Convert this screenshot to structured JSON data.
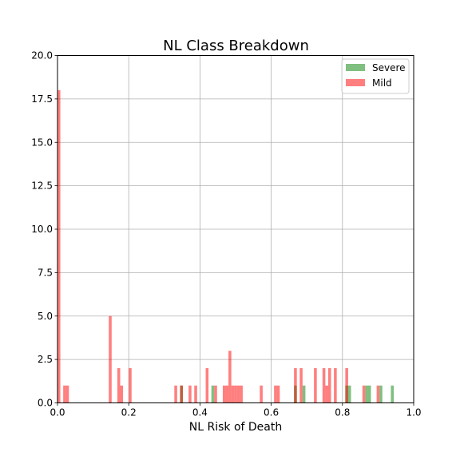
{
  "chart_data": {
    "type": "bar",
    "title": "NL Class Breakdown",
    "xlabel": "NL Risk of Death",
    "ylabel": "",
    "xlim": [
      0.0,
      1.0
    ],
    "ylim": [
      0.0,
      20.0
    ],
    "xticks": [
      "0.0",
      "0.2",
      "0.4",
      "0.6",
      "0.8",
      "1.0"
    ],
    "yticks": [
      "0.0",
      "2.5",
      "5.0",
      "7.5",
      "10.0",
      "12.5",
      "15.0",
      "17.5",
      "20.0"
    ],
    "grid": true,
    "legend_position": "top-right",
    "bin_width": 0.008,
    "series": [
      {
        "name": "Severe",
        "color": "#008000",
        "alpha": 0.5,
        "x": [
          0.344,
          0.432,
          0.664,
          0.688,
          0.808,
          0.816,
          0.864,
          0.872,
          0.904,
          0.936
        ],
        "values": [
          1,
          1,
          1,
          1,
          1,
          1,
          1,
          1,
          1,
          1
        ]
      },
      {
        "name": "Mild",
        "color": "#FF0000",
        "alpha": 0.5,
        "x": [
          0.0,
          0.016,
          0.024,
          0.144,
          0.168,
          0.176,
          0.2,
          0.328,
          0.344,
          0.368,
          0.384,
          0.416,
          0.44,
          0.464,
          0.472,
          0.48,
          0.488,
          0.496,
          0.504,
          0.512,
          0.568,
          0.608,
          0.616,
          0.664,
          0.68,
          0.72,
          0.744,
          0.752,
          0.76,
          0.776,
          0.808,
          0.856,
          0.896
        ],
        "values": [
          18,
          1,
          1,
          5,
          2,
          1,
          2,
          1,
          1,
          1,
          1,
          2,
          1,
          1,
          1,
          3,
          1,
          1,
          1,
          1,
          1,
          1,
          1,
          2,
          2,
          2,
          2,
          1,
          2,
          2,
          2,
          1,
          1
        ]
      }
    ]
  }
}
